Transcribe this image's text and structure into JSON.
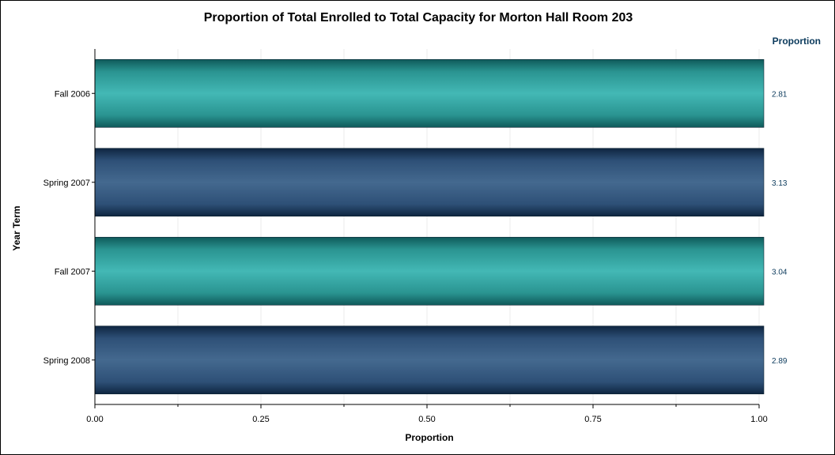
{
  "chart_data": {
    "type": "bar",
    "orientation": "horizontal",
    "title": "Proportion of Total Enrolled to Total Capacity for Morton Hall Room 203",
    "xlabel": "Proportion",
    "ylabel": "Year Term",
    "value_column_header": "Proportion",
    "categories": [
      "Fall 2006",
      "Spring 2007",
      "Fall 2007",
      "Spring 2008"
    ],
    "values": [
      2.81,
      3.13,
      3.04,
      2.89
    ],
    "value_labels": [
      "2.81",
      "3.13",
      "3.04",
      "2.89"
    ],
    "xlim": [
      0,
      1
    ],
    "xticks": [
      "0.00",
      "0.25",
      "0.50",
      "0.75",
      "1.00"
    ],
    "grid": true,
    "colors": [
      "#3fb3b0",
      "#41668d",
      "#3fb3b0",
      "#41668d"
    ]
  }
}
